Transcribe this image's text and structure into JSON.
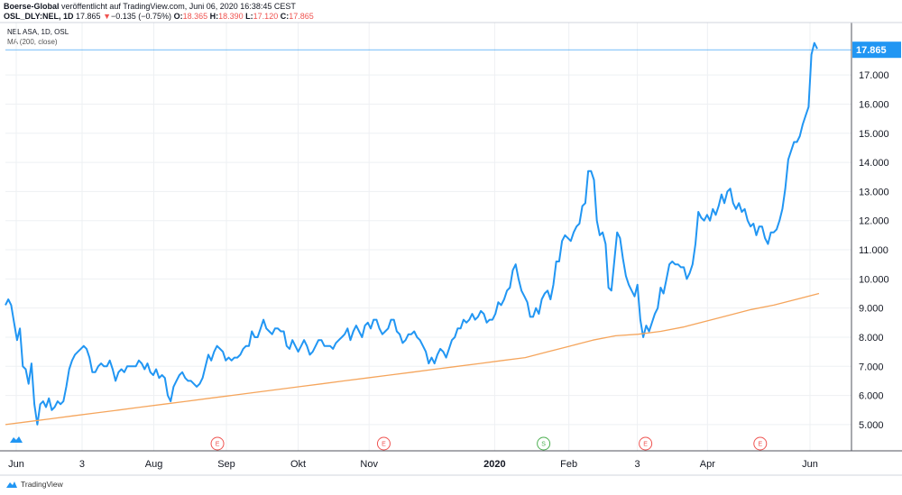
{
  "header": {
    "line1_author": "Boerse-Global",
    "line1_rest": " veröffentlicht auf TradingView.com, Juni 06, 2020 16:38:45 CEST",
    "symbol": "OSL_DLY:NEL, 1D",
    "last": "17.865",
    "change_arrow": "▼",
    "change": "−0.135 (−0.75%)",
    "o_label": "O:",
    "o_value": "18.365",
    "h_label": "H:",
    "h_value": "18.390",
    "l_label": "L:",
    "l_value": "17.120",
    "c_label": "C:",
    "c_value": "17.865"
  },
  "legend": {
    "series_title": "NEL ASA, 1D, OSL",
    "ma_title": "MA (200, close)"
  },
  "footer": {
    "brand": "TradingView"
  },
  "price_label": "17.865",
  "chart_data": {
    "type": "line",
    "y_ticks": [
      5,
      6,
      7,
      8,
      9,
      10,
      11,
      12,
      13,
      14,
      15,
      16,
      17
    ],
    "y_tick_labels": [
      "5.000",
      "6.000",
      "7.000",
      "8.000",
      "9.000",
      "10.000",
      "11.000",
      "12.000",
      "13.000",
      "14.000",
      "15.000",
      "16.000",
      "17.000"
    ],
    "ylim": [
      4.1,
      18.8
    ],
    "x_ticks": [
      {
        "label": "Jun",
        "pos": 0.0,
        "bold": false
      },
      {
        "label": "3",
        "pos": 0.094,
        "bold": false
      },
      {
        "label": "Aug",
        "pos": 0.182,
        "bold": false
      },
      {
        "label": "Sep",
        "pos": 0.271,
        "bold": false
      },
      {
        "label": "Okt",
        "pos": 0.359,
        "bold": false
      },
      {
        "label": "Nov",
        "pos": 0.446,
        "bold": false
      },
      {
        "label": "2020",
        "pos": 0.6,
        "bold": true
      },
      {
        "label": "Feb",
        "pos": 0.691,
        "bold": false
      },
      {
        "label": "3",
        "pos": 0.775,
        "bold": false
      },
      {
        "label": "Apr",
        "pos": 0.861,
        "bold": false
      },
      {
        "label": "Jun",
        "pos": 1.0,
        "bold": false
      }
    ],
    "events": [
      {
        "label": "E",
        "pos": 0.26,
        "color": "#ef5350"
      },
      {
        "label": "E",
        "pos": 0.464,
        "color": "#ef5350"
      },
      {
        "label": "S",
        "pos": 0.66,
        "color": "#4caf50"
      },
      {
        "label": "E",
        "pos": 0.785,
        "color": "#ef5350"
      },
      {
        "label": "E",
        "pos": 0.95,
        "color": "#ef5350"
      }
    ],
    "series": [
      {
        "name": "NEL ASA, 1D, OSL",
        "color": "#2196f3",
        "values": [
          9.1,
          9.3,
          9.1,
          8.5,
          7.9,
          8.3,
          7.0,
          6.9,
          6.4,
          7.1,
          5.7,
          5.0,
          5.7,
          5.8,
          5.6,
          5.9,
          5.5,
          5.6,
          5.8,
          5.7,
          5.8,
          6.3,
          6.9,
          7.2,
          7.4,
          7.5,
          7.6,
          7.7,
          7.6,
          7.3,
          6.8,
          6.8,
          7.0,
          7.1,
          7.0,
          7.0,
          7.2,
          6.9,
          6.5,
          6.8,
          6.9,
          6.8,
          7.0,
          7.0,
          7.0,
          7.0,
          7.2,
          7.1,
          6.9,
          7.1,
          6.8,
          6.7,
          6.9,
          6.6,
          6.7,
          6.6,
          6.0,
          5.8,
          6.3,
          6.5,
          6.7,
          6.8,
          6.6,
          6.5,
          6.5,
          6.4,
          6.3,
          6.4,
          6.6,
          7.0,
          7.4,
          7.2,
          7.5,
          7.7,
          7.6,
          7.5,
          7.2,
          7.3,
          7.2,
          7.3,
          7.3,
          7.4,
          7.6,
          7.7,
          7.7,
          8.2,
          8.0,
          8.0,
          8.3,
          8.6,
          8.3,
          8.2,
          8.1,
          8.3,
          8.3,
          8.2,
          8.2,
          7.7,
          7.6,
          7.9,
          7.7,
          7.5,
          7.7,
          7.9,
          7.7,
          7.4,
          7.5,
          7.7,
          7.9,
          7.9,
          7.7,
          7.7,
          7.7,
          7.6,
          7.8,
          7.9,
          8.0,
          8.1,
          8.3,
          7.9,
          8.2,
          8.4,
          8.2,
          8.0,
          8.4,
          8.5,
          8.3,
          8.6,
          8.6,
          8.3,
          8.1,
          8.2,
          8.3,
          8.6,
          8.6,
          8.2,
          8.1,
          7.8,
          7.9,
          8.1,
          8.1,
          8.2,
          8.0,
          7.9,
          7.7,
          7.5,
          7.1,
          7.3,
          7.1,
          7.4,
          7.6,
          7.5,
          7.3,
          7.6,
          7.9,
          8.0,
          8.3,
          8.3,
          8.6,
          8.5,
          8.6,
          8.8,
          8.6,
          8.7,
          8.9,
          8.8,
          8.5,
          8.6,
          8.6,
          8.8,
          9.2,
          9.1,
          9.3,
          9.6,
          9.7,
          10.3,
          10.5,
          10.0,
          9.6,
          9.4,
          9.2,
          8.7,
          8.7,
          9.0,
          8.8,
          9.3,
          9.5,
          9.6,
          9.3,
          9.8,
          10.6,
          10.6,
          11.3,
          11.5,
          11.4,
          11.3,
          11.6,
          11.8,
          11.9,
          12.5,
          12.6,
          13.7,
          13.7,
          13.4,
          12.0,
          11.5,
          11.6,
          11.2,
          9.7,
          9.6,
          10.6,
          11.6,
          11.4,
          10.7,
          10.1,
          9.8,
          9.6,
          9.4,
          9.8,
          8.6,
          8.0,
          8.4,
          8.2,
          8.5,
          8.8,
          9.0,
          9.7,
          9.5,
          10.0,
          10.5,
          10.6,
          10.5,
          10.5,
          10.4,
          10.4,
          10.0,
          10.2,
          10.5,
          11.2,
          12.3,
          12.1,
          12.0,
          12.2,
          12.0,
          12.4,
          12.2,
          12.5,
          12.9,
          12.6,
          13.0,
          13.1,
          12.6,
          12.4,
          12.6,
          12.3,
          12.4,
          12.0,
          11.8,
          11.9,
          11.5,
          11.8,
          11.8,
          11.4,
          11.2,
          11.6,
          11.6,
          11.7,
          12.0,
          12.4,
          13.1,
          14.1,
          14.4,
          14.7,
          14.7,
          14.9,
          15.3,
          15.6,
          15.9,
          17.7,
          18.1,
          17.9
        ]
      },
      {
        "name": "MA (200, close)",
        "color": "#f5a55c",
        "values": [
          5.0,
          5.1,
          5.2,
          5.3,
          5.4,
          5.5,
          5.6,
          5.7,
          5.8,
          5.9,
          6.0,
          6.1,
          6.2,
          6.3,
          6.4,
          6.5,
          6.6,
          6.7,
          6.8,
          6.9,
          7.0,
          7.1,
          7.2,
          7.3,
          7.5,
          7.7,
          7.9,
          8.05,
          8.1,
          8.2,
          8.35,
          8.55,
          8.75,
          8.95,
          9.1,
          9.3,
          9.5
        ]
      }
    ]
  }
}
